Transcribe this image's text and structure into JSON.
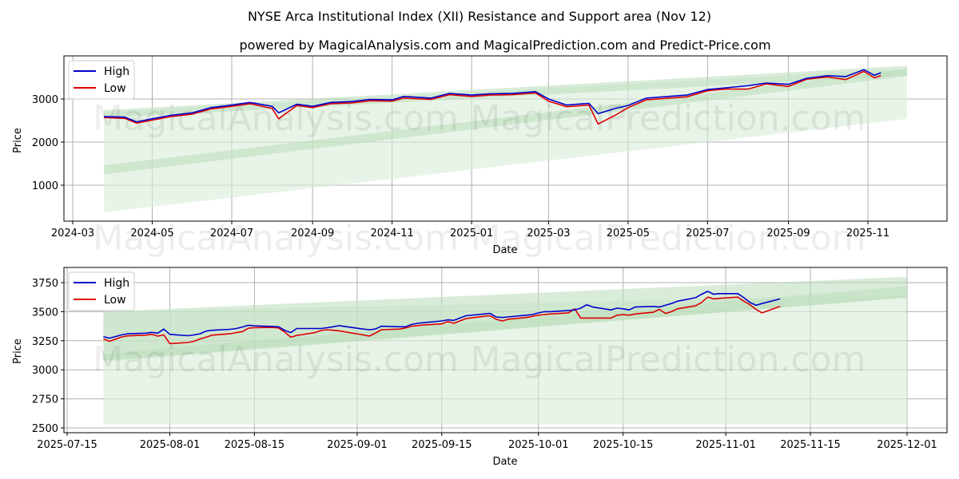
{
  "title": "NYSE Arca Institutional Index (XII) Resistance and Support area (Nov 12)",
  "subtitle": "powered by MagicalAnalysis.com and MagicalPrediction.com and Predict-Price.com",
  "watermarks": [
    "MagicalAnalysis.com",
    "MagicalPrediction.com"
  ],
  "colors": {
    "high": "#0000cc",
    "low": "#dd0000",
    "band_light": "#d9ecd9",
    "band_dark": "#b9dcb9",
    "grid": "#b0b0b0"
  },
  "legend": {
    "high_label": "High",
    "low_label": "Low"
  },
  "chart_data": [
    {
      "type": "line",
      "title": "NYSE Arca Institutional Index (XII) Resistance and Support area (Nov 12)",
      "xlabel": "Date",
      "ylabel": "Price",
      "x_tick_labels": [
        "2024-03",
        "2024-05",
        "2024-07",
        "2024-09",
        "2024-11",
        "2025-01",
        "2025-03",
        "2025-05",
        "2025-07",
        "2025-09",
        "2025-11"
      ],
      "y_tick_labels": [
        "1000",
        "2000",
        "3000"
      ],
      "ylim": [
        150,
        3950
      ],
      "grid": true,
      "legend_position": "upper left",
      "x": [
        "2024-03-25",
        "2024-04-10",
        "2024-04-19",
        "2024-05-01",
        "2024-05-15",
        "2024-06-01",
        "2024-06-15",
        "2024-07-01",
        "2024-07-15",
        "2024-08-01",
        "2024-08-06",
        "2024-08-20",
        "2024-09-01",
        "2024-09-15",
        "2024-10-01",
        "2024-10-15",
        "2024-11-01",
        "2024-11-10",
        "2024-12-01",
        "2024-12-15",
        "2025-01-01",
        "2025-01-15",
        "2025-02-01",
        "2025-02-19",
        "2025-03-01",
        "2025-03-15",
        "2025-04-01",
        "2025-04-08",
        "2025-04-21",
        "2025-05-01",
        "2025-05-15",
        "2025-06-01",
        "2025-06-15",
        "2025-07-01",
        "2025-07-15",
        "2025-08-01",
        "2025-08-15",
        "2025-09-01",
        "2025-09-15",
        "2025-10-01",
        "2025-10-15",
        "2025-10-29",
        "2025-11-06",
        "2025-11-11"
      ],
      "series": [
        {
          "name": "High",
          "values": [
            2590,
            2580,
            2470,
            2540,
            2620,
            2680,
            2800,
            2860,
            2920,
            2830,
            2680,
            2880,
            2830,
            2920,
            2940,
            2990,
            2980,
            3060,
            3020,
            3130,
            3090,
            3120,
            3130,
            3170,
            3000,
            2860,
            2900,
            2660,
            2780,
            2850,
            3020,
            3060,
            3090,
            3220,
            3260,
            3310,
            3370,
            3340,
            3480,
            3540,
            3520,
            3680,
            3550,
            3610
          ]
        },
        {
          "name": "Low",
          "values": [
            2570,
            2550,
            2440,
            2510,
            2590,
            2650,
            2770,
            2830,
            2890,
            2780,
            2540,
            2850,
            2800,
            2890,
            2910,
            2960,
            2950,
            3020,
            2990,
            3100,
            3060,
            3090,
            3100,
            3140,
            2950,
            2820,
            2860,
            2420,
            2620,
            2800,
            2980,
            3020,
            3050,
            3190,
            3230,
            3230,
            3350,
            3290,
            3460,
            3510,
            3450,
            3640,
            3490,
            3540
          ]
        }
      ],
      "bands": [
        {
          "name": "resistance_outer",
          "x": [
            "2024-03-25",
            "2025-12-01"
          ],
          "upper": [
            2740,
            3770
          ],
          "lower": [
            2560,
            3540
          ]
        },
        {
          "name": "support_mid",
          "x": [
            "2024-03-25",
            "2025-12-01"
          ],
          "upper": [
            1460,
            3690
          ],
          "lower": [
            1250,
            3530
          ]
        },
        {
          "name": "support_wide",
          "x": [
            "2024-03-25",
            "2025-12-01"
          ],
          "upper": [
            2700,
            3700
          ],
          "lower": [
            370,
            2540
          ]
        }
      ]
    },
    {
      "type": "line",
      "xlabel": "Date",
      "ylabel": "Price",
      "x_tick_labels": [
        "2025-07-15",
        "2025-08-01",
        "2025-08-15",
        "2025-09-01",
        "2025-09-15",
        "2025-10-01",
        "2025-10-15",
        "2025-11-01",
        "2025-11-15",
        "2025-12-01"
      ],
      "y_tick_labels": [
        "2500",
        "2750",
        "3000",
        "3250",
        "3500",
        "3750"
      ],
      "ylim": [
        2475,
        3870
      ],
      "grid": true,
      "legend_position": "upper left",
      "x": [
        "2025-07-21",
        "2025-07-22",
        "2025-07-24",
        "2025-07-25",
        "2025-07-28",
        "2025-07-29",
        "2025-07-30",
        "2025-07-31",
        "2025-08-01",
        "2025-08-04",
        "2025-08-05",
        "2025-08-06",
        "2025-08-07",
        "2025-08-08",
        "2025-08-11",
        "2025-08-12",
        "2025-08-13",
        "2025-08-14",
        "2025-08-15",
        "2025-08-18",
        "2025-08-19",
        "2025-08-20",
        "2025-08-21",
        "2025-08-22",
        "2025-08-25",
        "2025-08-26",
        "2025-08-27",
        "2025-08-28",
        "2025-08-29",
        "2025-09-02",
        "2025-09-03",
        "2025-09-04",
        "2025-09-05",
        "2025-09-08",
        "2025-09-09",
        "2025-09-10",
        "2025-09-11",
        "2025-09-12",
        "2025-09-15",
        "2025-09-16",
        "2025-09-17",
        "2025-09-18",
        "2025-09-19",
        "2025-09-22",
        "2025-09-23",
        "2025-09-24",
        "2025-09-25",
        "2025-09-26",
        "2025-09-29",
        "2025-09-30",
        "2025-10-01",
        "2025-10-02",
        "2025-10-03",
        "2025-10-06",
        "2025-10-07",
        "2025-10-08",
        "2025-10-09",
        "2025-10-10",
        "2025-10-13",
        "2025-10-14",
        "2025-10-15",
        "2025-10-16",
        "2025-10-17",
        "2025-10-20",
        "2025-10-21",
        "2025-10-22",
        "2025-10-23",
        "2025-10-24",
        "2025-10-27",
        "2025-10-28",
        "2025-10-29",
        "2025-10-30",
        "2025-10-31",
        "2025-11-03",
        "2025-11-04",
        "2025-11-05",
        "2025-11-06",
        "2025-11-07",
        "2025-11-10"
      ],
      "series": [
        {
          "name": "High",
          "values": [
            3285,
            3272,
            3300,
            3310,
            3315,
            3322,
            3315,
            3350,
            3305,
            3293,
            3300,
            3310,
            3333,
            3340,
            3348,
            3355,
            3368,
            3383,
            3378,
            3373,
            3370,
            3340,
            3320,
            3355,
            3355,
            3355,
            3362,
            3370,
            3380,
            3350,
            3345,
            3350,
            3375,
            3370,
            3370,
            3390,
            3400,
            3405,
            3420,
            3430,
            3425,
            3445,
            3465,
            3480,
            3485,
            3455,
            3450,
            3455,
            3470,
            3475,
            3490,
            3500,
            3500,
            3510,
            3515,
            3530,
            3560,
            3540,
            3515,
            3530,
            3525,
            3515,
            3540,
            3545,
            3540,
            3555,
            3570,
            3590,
            3620,
            3650,
            3675,
            3650,
            3655,
            3655,
            3620,
            3580,
            3555,
            3570,
            3610
          ]
        },
        {
          "name": "Low",
          "values": [
            3265,
            3245,
            3282,
            3292,
            3298,
            3305,
            3290,
            3300,
            3225,
            3235,
            3245,
            3265,
            3280,
            3298,
            3310,
            3320,
            3328,
            3358,
            3362,
            3365,
            3360,
            3325,
            3280,
            3295,
            3320,
            3338,
            3345,
            3340,
            3335,
            3300,
            3290,
            3315,
            3345,
            3350,
            3360,
            3375,
            3380,
            3385,
            3395,
            3415,
            3400,
            3420,
            3440,
            3460,
            3465,
            3435,
            3420,
            3435,
            3450,
            3460,
            3470,
            3475,
            3480,
            3490,
            3525,
            3445,
            3445,
            3445,
            3445,
            3470,
            3475,
            3470,
            3480,
            3495,
            3520,
            3485,
            3500,
            3525,
            3550,
            3580,
            3625,
            3610,
            3615,
            3625,
            3590,
            3560,
            3520,
            3490,
            3545
          ]
        }
      ],
      "bands": [
        {
          "name": "resistance_outer",
          "x": [
            "2025-07-21",
            "2025-12-01"
          ],
          "upper": [
            3500,
            3800
          ],
          "lower": [
            3080,
            3620
          ]
        },
        {
          "name": "resistance_inner",
          "x": [
            "2025-07-21",
            "2025-12-01"
          ],
          "upper": [
            3140,
            3720
          ],
          "lower": [
            3070,
            3620
          ]
        },
        {
          "name": "support_wide",
          "x": [
            "2025-07-21",
            "2025-12-01"
          ],
          "upper": [
            3500,
            3640
          ],
          "lower": [
            2530,
            2530
          ]
        }
      ]
    }
  ]
}
